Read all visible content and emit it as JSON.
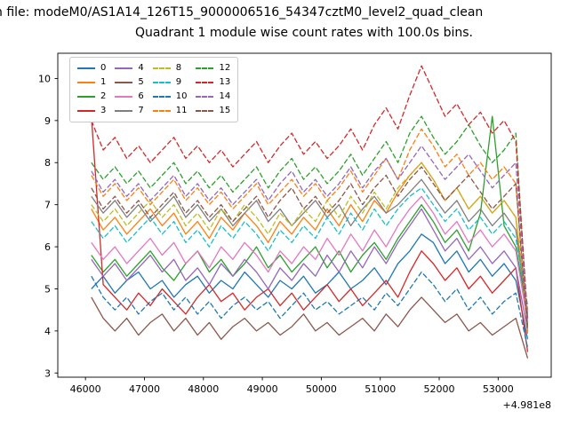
{
  "page": {
    "title_file": "n file: modeM0/AS1A14_126T15_9000006516_54347cztM0_level2_quad_clean",
    "title_sub": "Quadrant 1 module wise count rates with 100.0s bins."
  },
  "chart_data": {
    "type": "line",
    "title": "Quadrant 1 module wise count rates with 100.0s bins.",
    "xlabel": "",
    "ylabel": "",
    "x_offset_label": "+4.981e8",
    "x_start": 46100,
    "x_step": 200,
    "xlim": [
      45530,
      53900
    ],
    "ylim": [
      2.9,
      10.6
    ],
    "xticks": [
      46000,
      47000,
      48000,
      49000,
      50000,
      51000,
      52000,
      53000
    ],
    "yticks": [
      3,
      4,
      5,
      6,
      7,
      8,
      9,
      10
    ],
    "grid": false,
    "legend_position": "upper left",
    "legend_columns": 4,
    "series": [
      {
        "name": "0",
        "color": "#1f77b4",
        "dash": false,
        "y": [
          5.0,
          5.3,
          4.9,
          5.2,
          5.4,
          5.0,
          5.2,
          4.8,
          5.1,
          5.3,
          4.9,
          5.2,
          5.0,
          5.4,
          5.1,
          4.8,
          5.2,
          5.0,
          5.3,
          4.9,
          5.1,
          5.4,
          5.0,
          5.2,
          5.5,
          5.1,
          5.6,
          5.9,
          6.3,
          6.1,
          5.6,
          5.9,
          5.4,
          5.7,
          5.3,
          5.6,
          5.2,
          3.8
        ]
      },
      {
        "name": "1",
        "color": "#ff7f0e",
        "dash": false,
        "y": [
          6.9,
          6.4,
          6.7,
          6.3,
          6.6,
          6.9,
          6.5,
          6.8,
          6.3,
          6.6,
          6.2,
          6.7,
          6.4,
          6.8,
          6.5,
          6.1,
          6.6,
          6.3,
          6.7,
          6.4,
          6.9,
          6.5,
          7.0,
          6.6,
          7.1,
          6.8,
          7.3,
          7.7,
          8.0,
          7.6,
          7.1,
          7.4,
          6.9,
          7.2,
          6.8,
          7.1,
          6.7,
          4.1
        ]
      },
      {
        "name": "2",
        "color": "#2ca02c",
        "dash": false,
        "y": [
          5.8,
          5.4,
          5.7,
          5.3,
          5.6,
          5.9,
          5.5,
          5.2,
          5.6,
          5.9,
          5.4,
          5.7,
          5.3,
          5.6,
          6.0,
          5.5,
          5.8,
          5.4,
          5.7,
          6.0,
          5.5,
          5.9,
          5.4,
          5.8,
          6.1,
          5.7,
          6.2,
          6.6,
          7.0,
          6.6,
          6.1,
          6.4,
          5.9,
          6.8,
          9.1,
          6.5,
          6.0,
          4.4
        ]
      },
      {
        "name": "3",
        "color": "#d62728",
        "dash": false,
        "y": [
          9.1,
          5.1,
          4.8,
          4.5,
          4.9,
          4.6,
          5.0,
          4.7,
          4.4,
          4.8,
          5.1,
          4.7,
          4.9,
          4.5,
          4.8,
          5.0,
          4.6,
          4.9,
          4.5,
          4.8,
          5.1,
          4.7,
          5.0,
          4.6,
          4.9,
          5.2,
          4.8,
          5.4,
          5.9,
          5.6,
          5.2,
          5.5,
          5.0,
          5.3,
          4.9,
          5.2,
          5.5,
          3.5
        ]
      },
      {
        "name": "4",
        "color": "#9467bd",
        "dash": false,
        "y": [
          5.7,
          5.3,
          5.6,
          5.2,
          5.5,
          5.8,
          5.4,
          5.7,
          5.2,
          5.5,
          5.1,
          5.6,
          5.3,
          5.7,
          5.4,
          5.0,
          5.5,
          5.2,
          5.6,
          5.3,
          5.8,
          5.4,
          5.9,
          5.5,
          6.0,
          5.6,
          6.1,
          6.5,
          6.9,
          6.4,
          5.9,
          6.2,
          5.7,
          6.0,
          5.6,
          5.9,
          5.5,
          4.0
        ]
      },
      {
        "name": "5",
        "color": "#8c564b",
        "dash": false,
        "y": [
          4.8,
          4.3,
          4.0,
          4.3,
          3.9,
          4.2,
          4.4,
          4.0,
          4.3,
          3.9,
          4.2,
          3.8,
          4.1,
          4.3,
          4.0,
          4.2,
          3.9,
          4.1,
          4.4,
          4.0,
          4.2,
          3.9,
          4.1,
          4.3,
          4.0,
          4.4,
          4.1,
          4.5,
          4.8,
          4.5,
          4.2,
          4.4,
          4.0,
          4.2,
          3.9,
          4.1,
          4.3,
          3.35
        ]
      },
      {
        "name": "6",
        "color": "#e377c2",
        "dash": false,
        "y": [
          6.1,
          5.7,
          6.0,
          5.6,
          5.9,
          6.2,
          5.8,
          6.1,
          5.6,
          5.9,
          5.5,
          6.0,
          5.7,
          6.1,
          5.8,
          5.4,
          5.9,
          5.6,
          6.0,
          5.7,
          6.2,
          5.8,
          6.3,
          5.9,
          6.4,
          6.0,
          6.5,
          6.9,
          7.2,
          6.8,
          6.3,
          6.6,
          6.1,
          6.4,
          6.0,
          6.3,
          5.9,
          4.2
        ]
      },
      {
        "name": "7",
        "color": "#7f7f7f",
        "dash": false,
        "y": [
          7.2,
          6.8,
          7.1,
          6.7,
          7.0,
          6.6,
          6.9,
          7.2,
          6.7,
          7.0,
          6.6,
          6.9,
          6.5,
          6.8,
          7.1,
          6.6,
          6.9,
          6.5,
          6.8,
          7.1,
          6.7,
          7.0,
          6.5,
          6.9,
          7.2,
          6.8,
          7.0,
          7.3,
          7.6,
          7.2,
          6.8,
          7.1,
          6.6,
          6.9,
          6.5,
          6.8,
          6.4,
          4.3
        ]
      },
      {
        "name": "8",
        "color": "#bcbd22",
        "dash": true,
        "y": [
          7.0,
          6.6,
          6.9,
          6.5,
          6.8,
          7.1,
          6.7,
          7.0,
          6.5,
          6.8,
          6.4,
          6.9,
          6.6,
          7.0,
          6.7,
          6.3,
          6.8,
          6.5,
          6.9,
          6.6,
          7.1,
          6.7,
          7.2,
          6.8,
          7.3,
          6.9,
          7.4,
          7.7,
          8.0,
          7.6,
          7.1,
          7.4,
          6.9,
          7.2,
          6.8,
          7.1,
          6.7,
          4.5
        ]
      },
      {
        "name": "9",
        "color": "#17becf",
        "dash": true,
        "y": [
          6.6,
          6.2,
          6.5,
          6.1,
          6.4,
          6.7,
          6.3,
          6.6,
          6.1,
          6.4,
          6.0,
          6.5,
          6.2,
          6.6,
          6.3,
          5.9,
          6.4,
          6.1,
          6.5,
          6.2,
          6.7,
          6.3,
          6.8,
          6.4,
          6.9,
          6.5,
          6.9,
          7.2,
          7.4,
          7.0,
          6.6,
          6.9,
          6.4,
          6.7,
          6.3,
          6.6,
          6.2,
          4.6
        ]
      },
      {
        "name": "10",
        "color": "#1f77b4",
        "dash": true,
        "y": [
          5.3,
          4.8,
          4.5,
          4.8,
          4.4,
          4.7,
          4.9,
          4.5,
          4.8,
          4.4,
          4.7,
          4.3,
          4.6,
          4.8,
          4.5,
          4.7,
          4.3,
          4.6,
          4.9,
          4.5,
          4.7,
          4.4,
          4.6,
          4.8,
          4.5,
          4.9,
          4.6,
          5.0,
          5.4,
          5.1,
          4.7,
          5.0,
          4.5,
          4.8,
          4.4,
          4.7,
          4.9,
          3.6
        ]
      },
      {
        "name": "11",
        "color": "#ff7f0e",
        "dash": true,
        "y": [
          7.7,
          7.2,
          7.5,
          7.1,
          7.4,
          7.0,
          7.3,
          7.6,
          7.1,
          7.4,
          7.0,
          7.3,
          6.9,
          7.2,
          7.5,
          7.0,
          7.3,
          7.6,
          7.2,
          7.5,
          7.1,
          7.4,
          7.8,
          7.3,
          7.7,
          8.1,
          7.6,
          8.3,
          8.8,
          8.4,
          7.9,
          8.2,
          7.7,
          8.0,
          7.6,
          7.9,
          7.5,
          3.9
        ]
      },
      {
        "name": "12",
        "color": "#2ca02c",
        "dash": true,
        "y": [
          8.0,
          7.6,
          7.9,
          7.5,
          7.8,
          7.4,
          7.7,
          8.0,
          7.5,
          7.8,
          7.4,
          7.7,
          7.3,
          7.6,
          7.9,
          7.4,
          7.8,
          8.1,
          7.6,
          7.9,
          7.5,
          7.8,
          8.2,
          7.7,
          8.1,
          8.5,
          8.0,
          8.7,
          9.1,
          8.6,
          8.2,
          8.5,
          8.9,
          8.4,
          8.0,
          8.3,
          8.7,
          4.1
        ]
      },
      {
        "name": "13",
        "color": "#d62728",
        "dash": true,
        "y": [
          9.0,
          8.3,
          8.6,
          8.1,
          8.4,
          8.0,
          8.3,
          8.6,
          8.1,
          8.4,
          8.0,
          8.3,
          7.9,
          8.2,
          8.5,
          8.0,
          8.4,
          8.7,
          8.2,
          8.5,
          8.1,
          8.4,
          8.8,
          8.3,
          8.9,
          9.3,
          8.8,
          9.6,
          10.3,
          9.7,
          9.1,
          9.4,
          8.9,
          9.2,
          8.7,
          9.0,
          8.5,
          4.3
        ]
      },
      {
        "name": "14",
        "color": "#9467bd",
        "dash": true,
        "y": [
          7.8,
          7.3,
          7.6,
          7.2,
          7.5,
          7.1,
          7.4,
          7.7,
          7.2,
          7.5,
          7.1,
          7.4,
          7.0,
          7.3,
          7.6,
          7.1,
          7.5,
          7.8,
          7.3,
          7.6,
          7.2,
          7.5,
          7.9,
          7.4,
          7.8,
          8.1,
          7.6,
          8.0,
          8.4,
          8.0,
          7.6,
          7.9,
          8.2,
          7.8,
          7.4,
          7.7,
          8.0,
          4.2
        ]
      },
      {
        "name": "15",
        "color": "#8c564b",
        "dash": true,
        "y": [
          7.4,
          6.9,
          7.2,
          6.8,
          7.1,
          6.7,
          7.0,
          7.3,
          6.8,
          7.1,
          6.7,
          7.0,
          6.6,
          6.9,
          7.2,
          6.7,
          7.1,
          7.4,
          6.9,
          7.2,
          6.8,
          7.1,
          7.5,
          7.0,
          7.4,
          7.7,
          7.2,
          7.6,
          7.9,
          7.5,
          7.1,
          7.4,
          7.7,
          7.3,
          6.9,
          7.2,
          7.5,
          4.0
        ]
      }
    ]
  }
}
